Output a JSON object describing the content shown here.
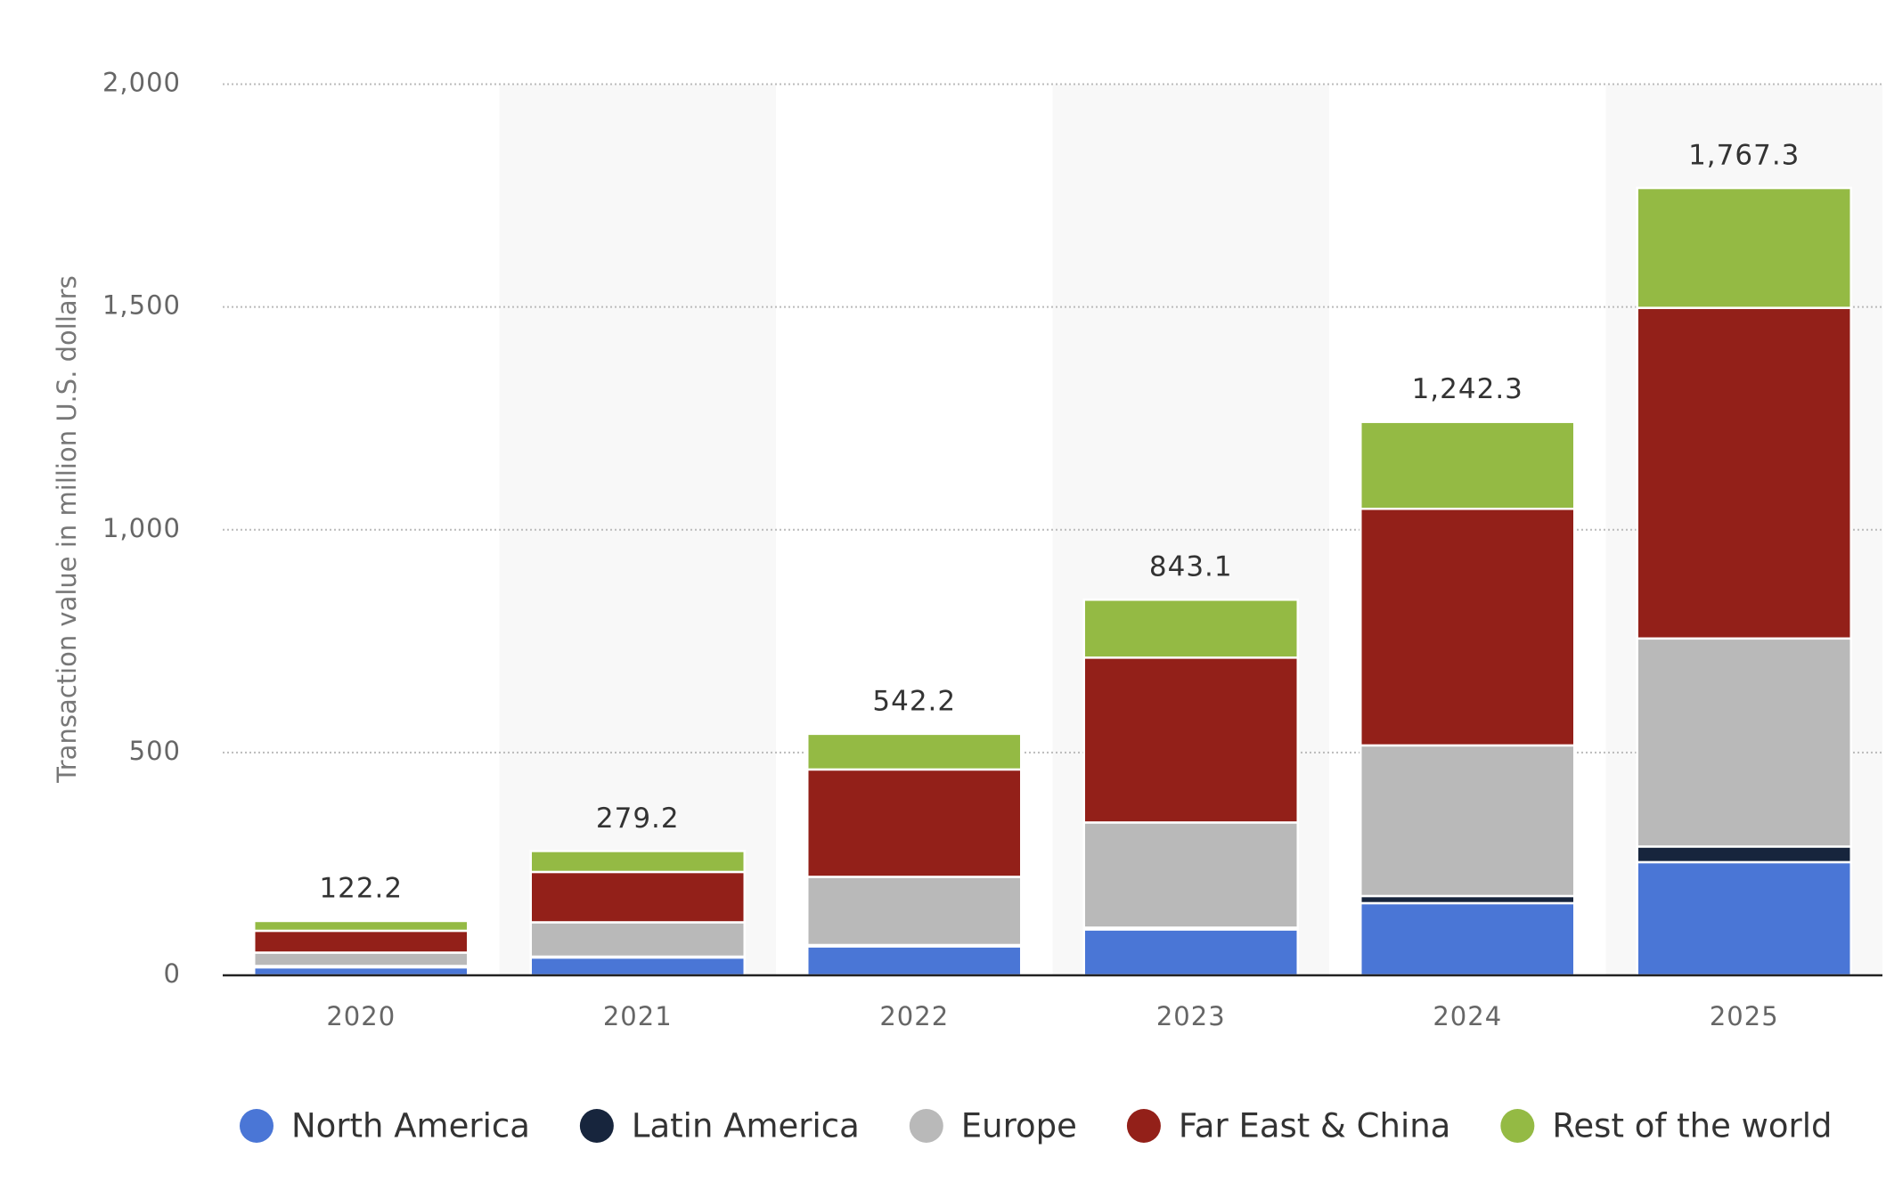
{
  "chart_data": {
    "type": "stacked_bar",
    "y_label": "Transaction value in million U.S. dollars",
    "categories": [
      "2020",
      "2021",
      "2022",
      "2023",
      "2024",
      "2025"
    ],
    "series": [
      {
        "name": "North America",
        "color": "#4a76d6",
        "values": [
          18,
          40,
          65,
          103,
          162,
          254
        ]
      },
      {
        "name": "Latin America",
        "color": "#17253d",
        "values": [
          3,
          2,
          3,
          4,
          16,
          35
        ]
      },
      {
        "name": "Europe",
        "color": "#b9b9b9",
        "values": [
          30,
          77,
          153,
          236,
          338,
          467
        ]
      },
      {
        "name": "Far East & China",
        "color": "#932019",
        "values": [
          49,
          113,
          241,
          370,
          531,
          742
        ]
      },
      {
        "name": "Rest of the world",
        "color": "#94ba44",
        "values": [
          22,
          47,
          80,
          130,
          195,
          269
        ]
      }
    ],
    "totals": [
      122.2,
      279.2,
      542.2,
      843.1,
      1242.3,
      1767.3
    ],
    "total_labels": [
      "122.2",
      "279.2",
      "542.2",
      "843.1",
      "1,242.3",
      "1,767.3"
    ],
    "ylim": [
      0,
      2000
    ],
    "yticks": [
      0,
      500,
      {
        "value": 1000,
        "label": "1,000"
      },
      {
        "value": 1500,
        "label": "1,500"
      },
      {
        "value": 2000,
        "label": "2,000"
      }
    ],
    "grid": true,
    "legend": "bottom"
  }
}
